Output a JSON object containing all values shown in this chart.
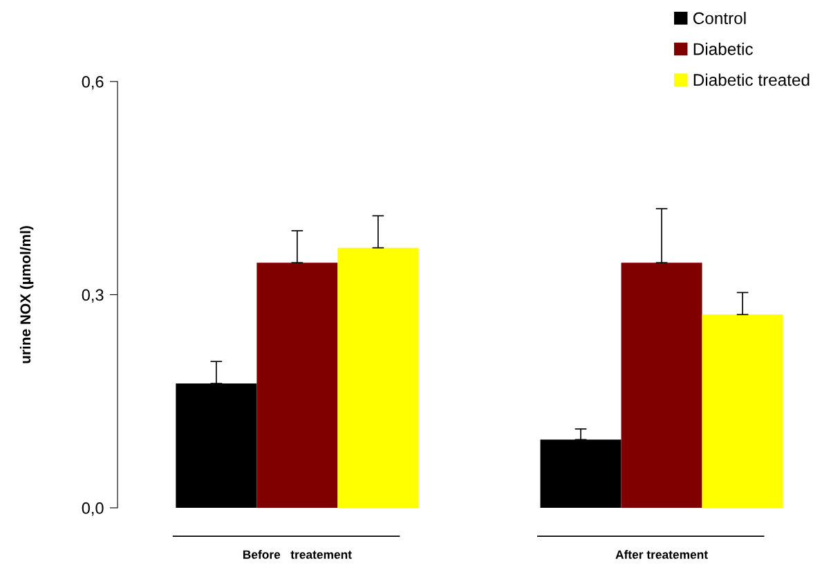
{
  "chart_data": {
    "type": "bar",
    "ylabel": "urine NOX (µmol/ml)",
    "categories": [
      "Before   treatement",
      "After treatement"
    ],
    "series": [
      {
        "name": "Control",
        "color": "#000000",
        "values": [
          0.175,
          0.096
        ],
        "errors": [
          [
            0.175,
            0.206
          ],
          [
            0.096,
            0.111
          ]
        ]
      },
      {
        "name": "Diabetic",
        "color": "#800000",
        "values": [
          0.345,
          0.345
        ],
        "errors": [
          [
            0.345,
            0.39
          ],
          [
            0.345,
            0.421
          ]
        ]
      },
      {
        "name": "Diabetic treated",
        "color": "#ffff00",
        "values": [
          0.366,
          0.272
        ],
        "errors": [
          [
            0.366,
            0.411
          ],
          [
            0.272,
            0.303
          ]
        ]
      }
    ],
    "ylim": [
      0,
      0.6
    ],
    "yticks": [
      {
        "value": 0,
        "label": "0,0"
      },
      {
        "value": 0.3,
        "label": "0,3"
      },
      {
        "value": 0.6,
        "label": "0,6"
      }
    ],
    "grid": false,
    "legend": "top right"
  }
}
